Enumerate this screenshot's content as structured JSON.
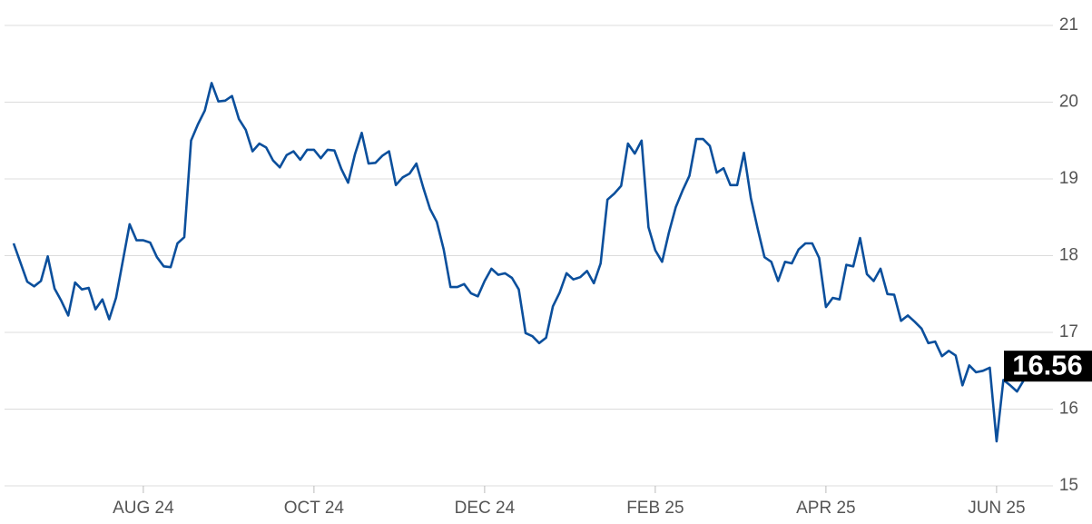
{
  "chart_data": {
    "type": "line",
    "color": "#0b4f9c",
    "grid": true,
    "y_axis_side": "right",
    "ylim": [
      15,
      21
    ],
    "yticks": [
      15,
      16,
      17,
      18,
      19,
      20,
      21
    ],
    "categories": [
      null,
      null,
      null,
      null,
      null,
      null,
      null,
      null,
      null,
      null,
      null,
      null,
      null,
      null,
      null,
      null,
      null,
      null,
      null,
      "AUG 24",
      null,
      null,
      null,
      null,
      null,
      null,
      null,
      null,
      null,
      null,
      null,
      null,
      null,
      null,
      null,
      null,
      null,
      null,
      null,
      null,
      null,
      null,
      null,
      null,
      "OCT 24",
      null,
      null,
      null,
      null,
      null,
      null,
      null,
      null,
      null,
      null,
      null,
      null,
      null,
      null,
      null,
      null,
      null,
      null,
      null,
      null,
      null,
      null,
      null,
      null,
      "DEC 24",
      null,
      null,
      null,
      null,
      null,
      null,
      null,
      null,
      null,
      null,
      null,
      null,
      null,
      null,
      null,
      null,
      null,
      null,
      null,
      null,
      null,
      null,
      null,
      null,
      "FEB 25",
      null,
      null,
      null,
      null,
      null,
      null,
      null,
      null,
      null,
      null,
      null,
      null,
      null,
      null,
      null,
      null,
      null,
      null,
      null,
      null,
      null,
      null,
      null,
      null,
      "APR 25",
      null,
      null,
      null,
      null,
      null,
      null,
      null,
      null,
      null,
      null,
      null,
      null,
      null,
      null,
      null,
      null,
      null,
      null,
      null,
      null,
      null,
      null,
      null,
      null,
      "JUN 25",
      null,
      null,
      null,
      null,
      null,
      null
    ],
    "values": [
      18.16,
      17.91,
      17.66,
      17.6,
      17.67,
      17.99,
      17.57,
      17.41,
      17.22,
      17.65,
      17.56,
      17.58,
      17.3,
      17.43,
      17.17,
      17.45,
      17.93,
      18.41,
      18.2,
      18.2,
      18.17,
      17.98,
      17.86,
      17.85,
      18.16,
      18.24,
      19.5,
      19.71,
      19.89,
      20.25,
      20.01,
      20.02,
      20.08,
      19.78,
      19.64,
      19.36,
      19.46,
      19.41,
      19.24,
      19.15,
      19.31,
      19.36,
      19.25,
      19.38,
      19.38,
      19.27,
      19.38,
      19.37,
      19.13,
      18.95,
      19.32,
      19.6,
      19.2,
      19.21,
      19.3,
      19.36,
      18.92,
      19.02,
      19.07,
      19.2,
      18.89,
      18.61,
      18.44,
      18.08,
      17.59,
      17.59,
      17.63,
      17.51,
      17.47,
      17.67,
      17.83,
      17.75,
      17.77,
      17.71,
      17.56,
      16.99,
      16.95,
      16.86,
      16.93,
      17.34,
      17.52,
      17.77,
      17.69,
      17.72,
      17.8,
      17.64,
      17.9,
      18.73,
      18.81,
      18.91,
      19.46,
      19.33,
      19.5,
      18.37,
      18.07,
      17.92,
      18.3,
      18.63,
      18.85,
      19.04,
      19.52,
      19.52,
      19.43,
      19.08,
      19.14,
      18.92,
      18.92,
      19.34,
      18.75,
      18.35,
      17.98,
      17.92,
      17.67,
      17.92,
      17.9,
      18.08,
      18.16,
      18.16,
      17.97,
      17.33,
      17.45,
      17.43,
      17.88,
      17.86,
      18.23,
      17.76,
      17.67,
      17.83,
      17.5,
      17.49,
      17.15,
      17.22,
      17.14,
      17.05,
      16.86,
      16.88,
      16.69,
      16.76,
      16.7,
      16.31,
      16.57,
      16.48,
      16.5,
      16.54,
      15.58,
      16.38,
      16.31,
      16.23,
      16.38,
      16.48,
      16.56
    ]
  }
}
